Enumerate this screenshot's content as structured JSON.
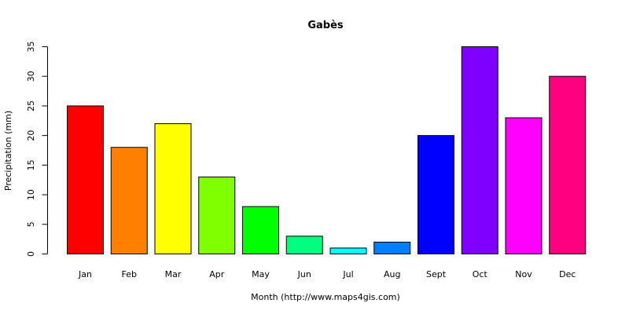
{
  "chart_data": {
    "type": "bar",
    "title": "Gabès",
    "xlabel": "Month (http://www.maps4gis.com)",
    "ylabel": "Precipitation (mm)",
    "categories": [
      "Jan",
      "Feb",
      "Mar",
      "Apr",
      "May",
      "Jun",
      "Jul",
      "Aug",
      "Sept",
      "Oct",
      "Nov",
      "Dec"
    ],
    "values": [
      25,
      18,
      22,
      13,
      8,
      3,
      1,
      2,
      20,
      35,
      23,
      30
    ],
    "colors": [
      "#FF0000",
      "#FF8000",
      "#FFFF00",
      "#80FF00",
      "#00FF00",
      "#00FF80",
      "#00FFFF",
      "#0080FF",
      "#0000FF",
      "#8000FF",
      "#FF00FF",
      "#FF0080"
    ],
    "yticks": [
      0,
      5,
      10,
      15,
      20,
      25,
      30,
      35
    ],
    "ylim": [
      0,
      35
    ],
    "grid": false,
    "legend": "none"
  }
}
